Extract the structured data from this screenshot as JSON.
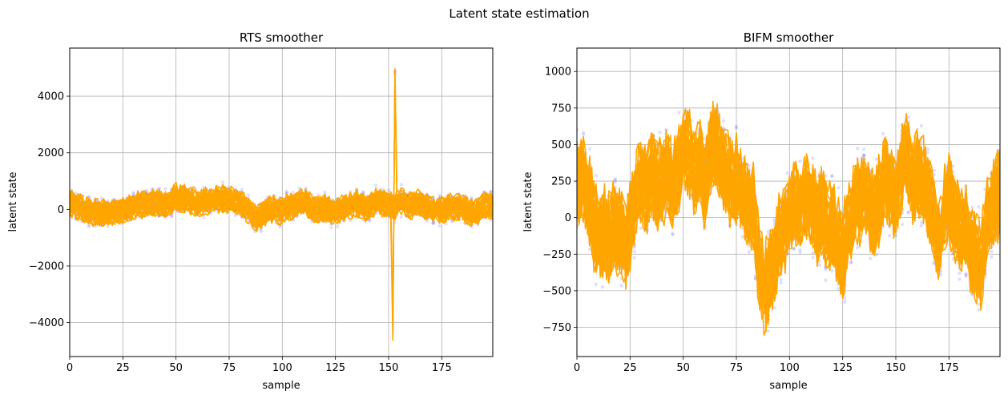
{
  "figure": {
    "suptitle": "Latent state estimation"
  },
  "chart_data": [
    {
      "type": "line",
      "title": "RTS smoother",
      "xlabel": "sample",
      "ylabel": "latent state",
      "xlim": [
        0,
        199
      ],
      "ylim": [
        -5200,
        5700
      ],
      "xticks": [
        0,
        25,
        50,
        75,
        100,
        125,
        150,
        175
      ],
      "yticks": [
        -4000,
        -2000,
        0,
        2000,
        4000
      ],
      "grid": true,
      "colors": {
        "estimate": "#ffa500",
        "observation": "#0000ff"
      },
      "trace_count": 30,
      "mean_curve": [
        [
          0,
          200
        ],
        [
          5,
          50
        ],
        [
          10,
          -100
        ],
        [
          15,
          -150
        ],
        [
          20,
          -120
        ],
        [
          25,
          -50
        ],
        [
          30,
          100
        ],
        [
          35,
          200
        ],
        [
          40,
          250
        ],
        [
          45,
          150
        ],
        [
          50,
          450
        ],
        [
          55,
          350
        ],
        [
          60,
          200
        ],
        [
          65,
          300
        ],
        [
          70,
          350
        ],
        [
          75,
          350
        ],
        [
          80,
          250
        ],
        [
          85,
          -100
        ],
        [
          88,
          -350
        ],
        [
          90,
          -200
        ],
        [
          95,
          0
        ],
        [
          100,
          -50
        ],
        [
          105,
          150
        ],
        [
          110,
          250
        ],
        [
          115,
          -20
        ],
        [
          120,
          50
        ],
        [
          125,
          -100
        ],
        [
          130,
          100
        ],
        [
          135,
          200
        ],
        [
          140,
          20
        ],
        [
          145,
          300
        ],
        [
          150,
          150
        ],
        [
          153,
          100
        ],
        [
          155,
          300
        ],
        [
          160,
          150
        ],
        [
          165,
          200
        ],
        [
          170,
          0
        ],
        [
          175,
          -50
        ],
        [
          180,
          100
        ],
        [
          185,
          50
        ],
        [
          190,
          -180
        ],
        [
          195,
          150
        ],
        [
          199,
          120
        ]
      ],
      "spike": {
        "x": [
          152,
          153,
          154
        ],
        "y": [
          -4700,
          5200,
          0
        ]
      }
    },
    {
      "type": "line",
      "title": "BIFM smoother",
      "xlabel": "sample",
      "ylabel": "latent state",
      "xlim": [
        0,
        199
      ],
      "ylim": [
        -950,
        1160
      ],
      "xticks": [
        0,
        25,
        50,
        75,
        100,
        125,
        150,
        175
      ],
      "yticks": [
        -750,
        -500,
        -250,
        0,
        250,
        500,
        750,
        1000
      ],
      "grid": true,
      "colors": {
        "estimate": "#ffa500",
        "observation": "#0000ff"
      },
      "trace_count": 30,
      "mean_curve": [
        [
          0,
          220
        ],
        [
          3,
          250
        ],
        [
          5,
          150
        ],
        [
          8,
          -50
        ],
        [
          10,
          -150
        ],
        [
          13,
          -100
        ],
        [
          15,
          -150
        ],
        [
          18,
          -50
        ],
        [
          20,
          -100
        ],
        [
          23,
          -200
        ],
        [
          25,
          -50
        ],
        [
          28,
          150
        ],
        [
          30,
          250
        ],
        [
          33,
          150
        ],
        [
          35,
          300
        ],
        [
          38,
          200
        ],
        [
          40,
          250
        ],
        [
          43,
          300
        ],
        [
          45,
          200
        ],
        [
          48,
          350
        ],
        [
          50,
          500
        ],
        [
          53,
          400
        ],
        [
          55,
          250
        ],
        [
          58,
          350
        ],
        [
          60,
          200
        ],
        [
          63,
          450
        ],
        [
          65,
          500
        ],
        [
          68,
          350
        ],
        [
          70,
          300
        ],
        [
          73,
          200
        ],
        [
          75,
          250
        ],
        [
          78,
          150
        ],
        [
          80,
          100
        ],
        [
          83,
          50
        ],
        [
          85,
          -250
        ],
        [
          88,
          -500
        ],
        [
          90,
          -450
        ],
        [
          93,
          -300
        ],
        [
          95,
          -150
        ],
        [
          98,
          -100
        ],
        [
          100,
          0
        ],
        [
          103,
          100
        ],
        [
          105,
          50
        ],
        [
          108,
          150
        ],
        [
          110,
          100
        ],
        [
          113,
          -50
        ],
        [
          115,
          50
        ],
        [
          118,
          -100
        ],
        [
          120,
          -50
        ],
        [
          123,
          -200
        ],
        [
          125,
          -250
        ],
        [
          128,
          -50
        ],
        [
          130,
          50
        ],
        [
          133,
          100
        ],
        [
          135,
          200
        ],
        [
          138,
          50
        ],
        [
          140,
          0
        ],
        [
          143,
          150
        ],
        [
          145,
          300
        ],
        [
          148,
          150
        ],
        [
          150,
          100
        ],
        [
          153,
          350
        ],
        [
          155,
          450
        ],
        [
          158,
          200
        ],
        [
          160,
          300
        ],
        [
          163,
          250
        ],
        [
          165,
          150
        ],
        [
          168,
          0
        ],
        [
          170,
          -200
        ],
        [
          173,
          50
        ],
        [
          175,
          150
        ],
        [
          178,
          -50
        ],
        [
          180,
          -100
        ],
        [
          183,
          -50
        ],
        [
          185,
          -250
        ],
        [
          188,
          -300
        ],
        [
          190,
          -350
        ],
        [
          193,
          0
        ],
        [
          195,
          50
        ],
        [
          199,
          150
        ]
      ]
    }
  ]
}
